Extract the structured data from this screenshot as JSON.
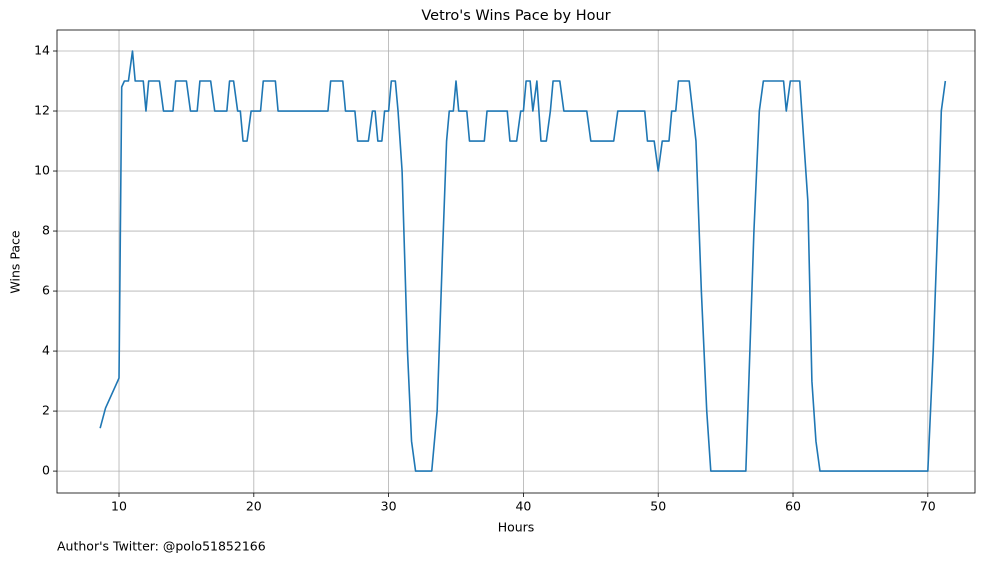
{
  "chart_data": {
    "type": "line",
    "title": "Vetro's Wins Pace by Hour",
    "xlabel": "Hours",
    "ylabel": "Wins Pace",
    "annotation": "Author's Twitter: @polo51852166",
    "color": "#1f77b4",
    "grid": true,
    "xlim": [
      5.4,
      73.5
    ],
    "ylim": [
      -0.73,
      14.7
    ],
    "xticks": [
      10,
      20,
      30,
      40,
      50,
      60,
      70
    ],
    "yticks": [
      0,
      2,
      4,
      6,
      8,
      10,
      12,
      14
    ],
    "x": [
      8.6,
      9.0,
      10.0,
      10.2,
      10.4,
      10.7,
      11.0,
      11.2,
      11.8,
      12.0,
      12.2,
      13.0,
      13.3,
      14.0,
      14.2,
      15.0,
      15.3,
      15.8,
      16.0,
      16.8,
      17.1,
      18.0,
      18.2,
      18.5,
      18.8,
      19.0,
      19.2,
      19.5,
      19.8,
      20.5,
      20.7,
      21.6,
      21.8,
      25.5,
      25.7,
      26.6,
      26.8,
      27.5,
      27.7,
      28.5,
      28.8,
      29.0,
      29.2,
      29.5,
      29.7,
      30.0,
      30.2,
      30.5,
      30.7,
      31.0,
      31.4,
      31.7,
      32.0,
      33.2,
      33.6,
      34.0,
      34.3,
      34.5,
      34.8,
      35.0,
      35.2,
      35.8,
      36.0,
      37.1,
      37.3,
      38.8,
      39.0,
      39.5,
      39.8,
      40.0,
      40.2,
      40.5,
      40.7,
      41.0,
      41.3,
      41.7,
      42.0,
      42.2,
      42.7,
      43.0,
      44.7,
      45.0,
      46.7,
      47.0,
      49.0,
      49.2,
      49.7,
      50.0,
      50.3,
      50.8,
      51.0,
      51.3,
      51.5,
      52.3,
      52.8,
      53.2,
      53.6,
      53.9,
      56.5,
      56.8,
      57.1,
      57.5,
      57.8,
      59.3,
      59.5,
      59.8,
      60.5,
      60.8,
      61.1,
      61.4,
      61.7,
      62.0,
      70.0,
      70.4,
      70.8,
      71.0,
      71.3
    ],
    "values": [
      1.43,
      2.1,
      3.1,
      12.8,
      13,
      13,
      14,
      13,
      13,
      12,
      13,
      13,
      12,
      12,
      13,
      13,
      12,
      12,
      13,
      13,
      12,
      12,
      13,
      13,
      12,
      12,
      11,
      11,
      12,
      12,
      13,
      13,
      12,
      12,
      13,
      13,
      12,
      12,
      11,
      11,
      12,
      12,
      11,
      11,
      12,
      12,
      13,
      13,
      12,
      10,
      4,
      1,
      0,
      0,
      2,
      7.3,
      11,
      12,
      12,
      13,
      12,
      12,
      11,
      11,
      12,
      12,
      11,
      11,
      12,
      12,
      13,
      13,
      12,
      13,
      11,
      11,
      12,
      13,
      13,
      12,
      12,
      11,
      11,
      12,
      12,
      11,
      11,
      10,
      11,
      11,
      12,
      12,
      13,
      13,
      11,
      6,
      2,
      0,
      0,
      4,
      8,
      12,
      13,
      13,
      12,
      13,
      13,
      11,
      9,
      3,
      1,
      0,
      0,
      4,
      9,
      12,
      13
    ]
  }
}
